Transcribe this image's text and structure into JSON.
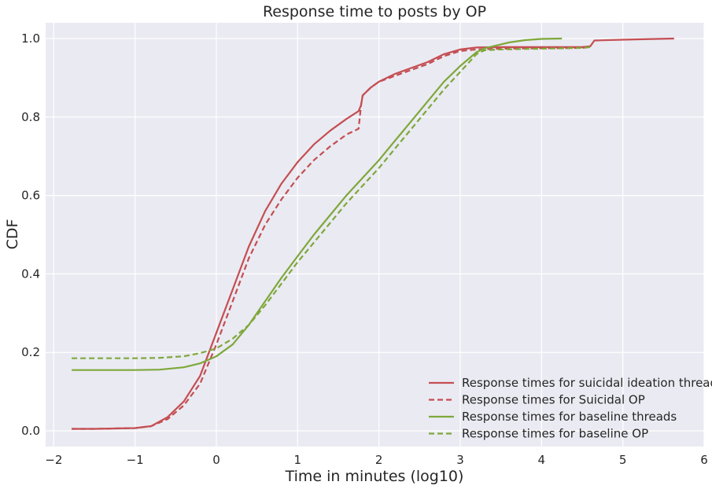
{
  "chart_data": {
    "type": "line",
    "title": "Response time to posts by OP",
    "xlabel": "Time in minutes (log10)",
    "ylabel": "CDF",
    "xlim": [
      -2.1,
      6.0
    ],
    "ylim": [
      -0.04,
      1.04
    ],
    "xticks": [
      -2,
      -1,
      0,
      1,
      2,
      3,
      4,
      5,
      6
    ],
    "xtick_labels": [
      "−2",
      "−1",
      "0",
      "1",
      "2",
      "3",
      "4",
      "5",
      "6"
    ],
    "yticks": [
      0.0,
      0.2,
      0.4,
      0.6,
      0.8,
      1.0
    ],
    "ytick_labels": [
      "0.0",
      "0.2",
      "0.4",
      "0.6",
      "0.8",
      "1.0"
    ],
    "grid": true,
    "legend_position": "lower-right",
    "series": [
      {
        "name": "Response times for suicidal ideation threads",
        "color": "#c44e52",
        "style": "solid",
        "x": [
          -1.78,
          -1.5,
          -1.0,
          -0.8,
          -0.6,
          -0.4,
          -0.2,
          0.0,
          0.2,
          0.4,
          0.6,
          0.8,
          1.0,
          1.2,
          1.4,
          1.6,
          1.75,
          1.78,
          1.8,
          1.9,
          2.0,
          2.2,
          2.4,
          2.6,
          2.8,
          3.0,
          3.2,
          3.5,
          4.0,
          4.5,
          4.6,
          4.65,
          5.0,
          5.63
        ],
        "y": [
          0.005,
          0.005,
          0.007,
          0.012,
          0.035,
          0.075,
          0.14,
          0.25,
          0.36,
          0.47,
          0.56,
          0.63,
          0.685,
          0.73,
          0.765,
          0.795,
          0.815,
          0.83,
          0.855,
          0.875,
          0.89,
          0.91,
          0.925,
          0.94,
          0.96,
          0.972,
          0.977,
          0.978,
          0.978,
          0.978,
          0.98,
          0.995,
          0.997,
          1.0
        ]
      },
      {
        "name": "Response times for Suicidal OP",
        "color": "#c44e52",
        "style": "dashed",
        "x": [
          -1.78,
          -1.5,
          -1.0,
          -0.8,
          -0.6,
          -0.4,
          -0.2,
          0.0,
          0.2,
          0.4,
          0.6,
          0.8,
          1.0,
          1.2,
          1.4,
          1.6,
          1.75,
          1.78,
          1.8,
          1.9,
          2.0,
          2.2,
          2.4,
          2.6,
          2.8,
          3.0,
          3.2,
          3.5,
          4.0,
          4.5,
          4.6
        ],
        "y": [
          0.005,
          0.005,
          0.007,
          0.012,
          0.03,
          0.065,
          0.12,
          0.22,
          0.33,
          0.44,
          0.525,
          0.59,
          0.645,
          0.69,
          0.725,
          0.755,
          0.77,
          0.83,
          0.855,
          0.875,
          0.89,
          0.905,
          0.92,
          0.935,
          0.955,
          0.968,
          0.972,
          0.974,
          0.975,
          0.976,
          0.978
        ]
      },
      {
        "name": "Response times for baseline threads",
        "color": "#7ea83a",
        "style": "solid",
        "x": [
          -1.78,
          -1.0,
          -0.7,
          -0.4,
          -0.2,
          0.0,
          0.2,
          0.4,
          0.6,
          0.8,
          1.0,
          1.2,
          1.4,
          1.6,
          1.8,
          2.0,
          2.2,
          2.4,
          2.6,
          2.8,
          3.0,
          3.2,
          3.3,
          3.4,
          3.6,
          3.8,
          4.0,
          4.25
        ],
        "y": [
          0.155,
          0.155,
          0.156,
          0.162,
          0.172,
          0.19,
          0.22,
          0.27,
          0.33,
          0.39,
          0.445,
          0.5,
          0.55,
          0.6,
          0.645,
          0.69,
          0.74,
          0.79,
          0.84,
          0.89,
          0.93,
          0.965,
          0.975,
          0.98,
          0.99,
          0.996,
          0.999,
          1.0
        ]
      },
      {
        "name": "Response times for baseline OP",
        "color": "#7ea83a",
        "style": "dashed",
        "x": [
          -1.78,
          -1.0,
          -0.7,
          -0.4,
          -0.2,
          0.0,
          0.2,
          0.4,
          0.6,
          0.8,
          1.0,
          1.2,
          1.4,
          1.6,
          1.8,
          2.0,
          2.2,
          2.4,
          2.6,
          2.8,
          3.0,
          3.2,
          3.3,
          3.5,
          4.0,
          4.5,
          4.6
        ],
        "y": [
          0.185,
          0.185,
          0.186,
          0.19,
          0.198,
          0.21,
          0.235,
          0.27,
          0.32,
          0.375,
          0.43,
          0.48,
          0.53,
          0.58,
          0.625,
          0.67,
          0.72,
          0.77,
          0.82,
          0.87,
          0.915,
          0.96,
          0.97,
          0.972,
          0.974,
          0.976,
          0.978
        ]
      }
    ]
  }
}
